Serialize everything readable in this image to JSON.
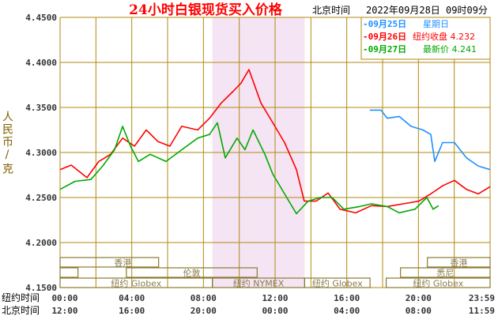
{
  "header": {
    "title": "24小时白银现货买入价格",
    "tz_label": "北京时间",
    "datetime": "2022年09月28日 09时09分"
  },
  "legend": [
    {
      "date": "-09月25日",
      "info": "星期日",
      "color": "#1e90ff"
    },
    {
      "date": "-09月26日",
      "info": "纽约收盘 4.232",
      "color": "#ff0000"
    },
    {
      "date": "-09月27日",
      "info": "最新价 4.241",
      "color": "#00aa00"
    }
  ],
  "sessions": {
    "hongkong": "香港",
    "london": "伦敦",
    "sydney": "悉尼",
    "ny_globex": "纽约 Globex",
    "ny_nymex": "纽约 NYMEX"
  },
  "colors": {
    "grid": "#b08a10",
    "shade": "#f4e4f4",
    "session": "#8a7a30"
  },
  "chart_data": {
    "type": "line",
    "ylabel": "人民币/克",
    "ylim": [
      4.15,
      4.45
    ],
    "yticks": [
      "4.4500",
      "4.4000",
      "4.3500",
      "4.3000",
      "4.2500",
      "4.2000",
      "4.1500"
    ],
    "xlim_hours_ny": [
      0,
      24
    ],
    "x_row1_label": "纽约时间",
    "x_row1_ticks": [
      "00:00",
      "04:00",
      "08:00",
      "12:00",
      "16:00",
      "20:00",
      "23:59"
    ],
    "x_row2_label": "北京时间",
    "x_row2_ticks": [
      "12:00",
      "16:00",
      "20:00",
      "00:00",
      "04:00",
      "08:00",
      "11:59"
    ],
    "grid": true,
    "legend_placement": "top-right",
    "series": [
      {
        "key": "red",
        "color": "#ff0000",
        "x": [
          0,
          0.62,
          1.5,
          2.16,
          2.82,
          3.49,
          4.15,
          4.81,
          5.47,
          6.13,
          6.79,
          7.68,
          8.34,
          9.0,
          9.66,
          10.1,
          10.54,
          11.21,
          11.87,
          12.53,
          13.19,
          13.63,
          14.29,
          14.96,
          15.62,
          16.5,
          17.38,
          18.26,
          19.15,
          20.03,
          20.69,
          21.35,
          22.01,
          22.68,
          23.34,
          24.0
        ],
        "y": [
          4.281,
          4.286,
          4.272,
          4.29,
          4.298,
          4.316,
          4.307,
          4.325,
          4.312,
          4.307,
          4.329,
          4.325,
          4.338,
          4.355,
          4.368,
          4.377,
          4.392,
          4.355,
          4.333,
          4.311,
          4.281,
          4.246,
          4.246,
          4.255,
          4.237,
          4.233,
          4.241,
          4.24,
          4.243,
          4.246,
          4.254,
          4.263,
          4.269,
          4.259,
          4.254,
          4.262
        ]
      },
      {
        "key": "green",
        "color": "#00aa00",
        "x": [
          0,
          0.84,
          1.72,
          2.38,
          3.04,
          3.49,
          3.93,
          4.37,
          5.03,
          5.91,
          6.79,
          7.68,
          8.34,
          8.78,
          9.22,
          9.88,
          10.32,
          10.77,
          11.43,
          11.87,
          12.53,
          13.19,
          13.85,
          14.51,
          15.18,
          15.84,
          16.72,
          17.38,
          18.26,
          18.93,
          19.81,
          20.47,
          20.82,
          21.13
        ],
        "y": [
          4.259,
          4.268,
          4.27,
          4.285,
          4.303,
          4.329,
          4.307,
          4.29,
          4.298,
          4.29,
          4.303,
          4.316,
          4.32,
          4.333,
          4.294,
          4.316,
          4.303,
          4.325,
          4.298,
          4.276,
          4.254,
          4.232,
          4.246,
          4.25,
          4.25,
          4.237,
          4.24,
          4.243,
          4.24,
          4.233,
          4.237,
          4.25,
          4.237,
          4.241
        ]
      },
      {
        "key": "blue",
        "color": "#1e90ff",
        "x": [
          17.29,
          17.91,
          18.26,
          18.93,
          19.59,
          20.25,
          20.69,
          20.91,
          21.35,
          22.01,
          22.68,
          23.34,
          24.0
        ],
        "y": [
          4.347,
          4.347,
          4.338,
          4.34,
          4.329,
          4.325,
          4.32,
          4.29,
          4.311,
          4.311,
          4.294,
          4.285,
          4.281
        ]
      }
    ]
  }
}
